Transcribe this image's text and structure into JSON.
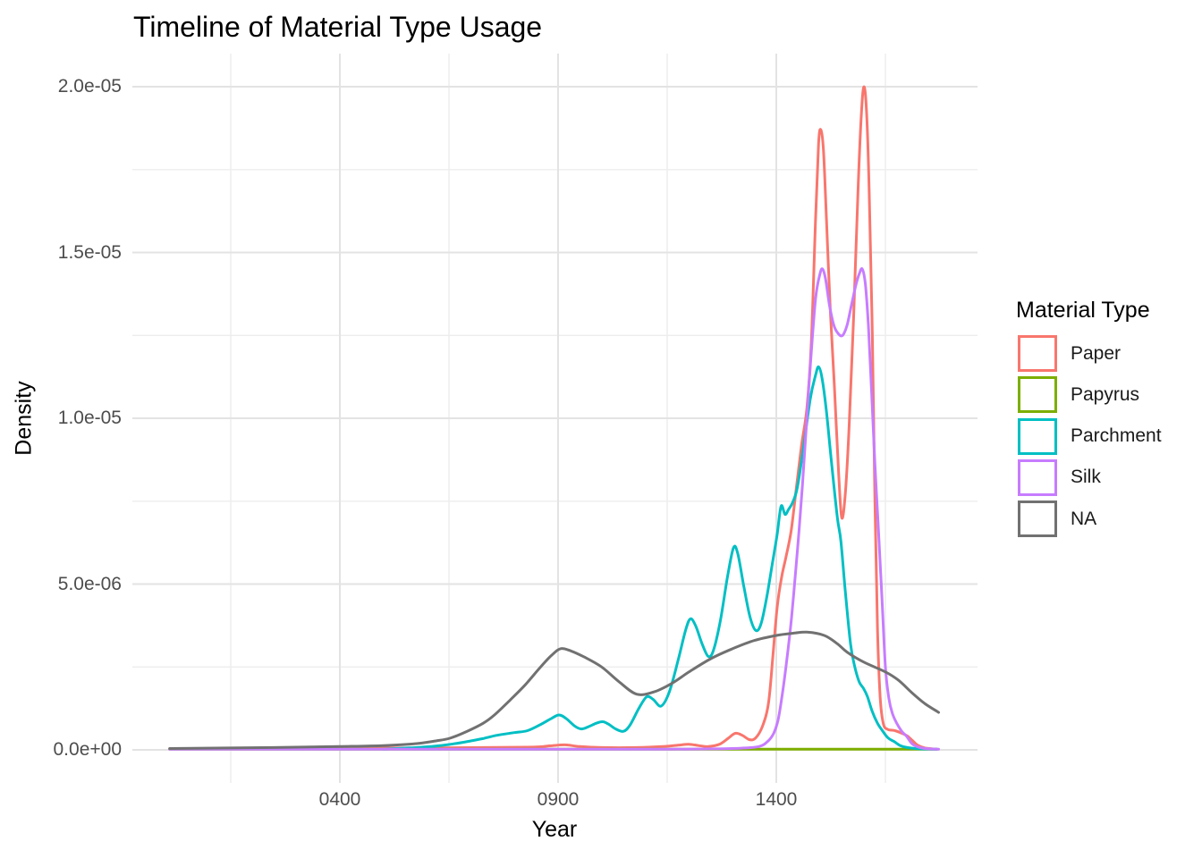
{
  "title": "Timeline of Material Type Usage",
  "axes": {
    "x": {
      "label": "Year",
      "ticks": [
        {
          "label": "0400",
          "value": 400
        },
        {
          "label": "0900",
          "value": 900
        },
        {
          "label": "1400",
          "value": 1400
        }
      ],
      "minor_ticks": [
        150,
        650,
        1150,
        1650
      ],
      "domain": [
        10,
        1772
      ]
    },
    "y": {
      "label": "Density",
      "ticks": [
        {
          "label": "0.0e+00",
          "value_e6": 0
        },
        {
          "label": "5.0e-06",
          "value_e6": 5
        },
        {
          "label": "1.0e-05",
          "value_e6": 10
        },
        {
          "label": "1.5e-05",
          "value_e6": 15
        },
        {
          "label": "2.0e-05",
          "value_e6": 20
        }
      ],
      "minor_ticks_e6": [
        2.5,
        7.5,
        12.5,
        17.5
      ],
      "domain_e6": [
        0,
        22
      ]
    }
  },
  "legend": {
    "title": "Material Type",
    "items": [
      {
        "label": "Paper",
        "color": "#F8766D"
      },
      {
        "label": "Papyrus",
        "color": "#7CAE00"
      },
      {
        "label": "Parchment",
        "color": "#00BFC4"
      },
      {
        "label": "Silk",
        "color": "#C77CFF"
      },
      {
        "label": "NA",
        "color": "#717171"
      }
    ]
  },
  "style": {
    "grid_major_color": "#E3E3E3",
    "grid_minor_color": "#EDEDED",
    "line_width": 3
  },
  "chart_data": {
    "type": "line",
    "subtype": "density",
    "xlabel": "Year",
    "ylabel": "Density",
    "x_range": [
      10,
      1772
    ],
    "y_range": [
      0,
      2e-05
    ],
    "grid": true,
    "legend_position": "right",
    "density_units": "1e-06",
    "series": [
      {
        "name": "Paper",
        "color": "#F8766D",
        "points": [
          [
            10,
            0.03
          ],
          [
            300,
            0.04
          ],
          [
            600,
            0.06
          ],
          [
            830,
            0.08
          ],
          [
            880,
            0.12
          ],
          [
            916,
            0.15
          ],
          [
            950,
            0.1
          ],
          [
            1000,
            0.07
          ],
          [
            1080,
            0.07
          ],
          [
            1140,
            0.1
          ],
          [
            1175,
            0.14
          ],
          [
            1199,
            0.17
          ],
          [
            1222,
            0.13
          ],
          [
            1244,
            0.1
          ],
          [
            1270,
            0.17
          ],
          [
            1290,
            0.35
          ],
          [
            1306,
            0.5
          ],
          [
            1322,
            0.44
          ],
          [
            1338,
            0.31
          ],
          [
            1352,
            0.35
          ],
          [
            1368,
            0.7
          ],
          [
            1382,
            1.4
          ],
          [
            1392,
            2.8
          ],
          [
            1402,
            4.3
          ],
          [
            1412,
            5.2
          ],
          [
            1422,
            5.8
          ],
          [
            1434,
            6.6
          ],
          [
            1446,
            7.9
          ],
          [
            1458,
            9.2
          ],
          [
            1470,
            10.3
          ],
          [
            1480,
            12.2
          ],
          [
            1490,
            16.0
          ],
          [
            1497,
            18.3
          ],
          [
            1502,
            18.7
          ],
          [
            1508,
            18.1
          ],
          [
            1515,
            16.0
          ],
          [
            1524,
            13.2
          ],
          [
            1533,
            11.0
          ],
          [
            1543,
            8.3
          ],
          [
            1550,
            7.0
          ],
          [
            1558,
            7.7
          ],
          [
            1567,
            9.8
          ],
          [
            1577,
            13.0
          ],
          [
            1587,
            16.8
          ],
          [
            1595,
            19.2
          ],
          [
            1601,
            20.0
          ],
          [
            1607,
            19.2
          ],
          [
            1613,
            16.8
          ],
          [
            1620,
            12.5
          ],
          [
            1626,
            7.5
          ],
          [
            1632,
            3.6
          ],
          [
            1638,
            1.6
          ],
          [
            1645,
            0.8
          ],
          [
            1655,
            0.62
          ],
          [
            1672,
            0.58
          ],
          [
            1688,
            0.5
          ],
          [
            1700,
            0.42
          ],
          [
            1712,
            0.28
          ],
          [
            1724,
            0.14
          ],
          [
            1740,
            0.06
          ],
          [
            1768,
            0.02
          ]
        ]
      },
      {
        "name": "Papyrus",
        "color": "#7CAE00",
        "points": [
          [
            10,
            0.02
          ],
          [
            300,
            0.02
          ],
          [
            700,
            0.02
          ],
          [
            1100,
            0.02
          ],
          [
            1400,
            0.02
          ],
          [
            1768,
            0.02
          ]
        ]
      },
      {
        "name": "Parchment",
        "color": "#00BFC4",
        "points": [
          [
            500,
            0.02
          ],
          [
            560,
            0.06
          ],
          [
            610,
            0.1
          ],
          [
            660,
            0.18
          ],
          [
            700,
            0.27
          ],
          [
            728,
            0.34
          ],
          [
            760,
            0.44
          ],
          [
            800,
            0.52
          ],
          [
            830,
            0.58
          ],
          [
            862,
            0.78
          ],
          [
            885,
            0.95
          ],
          [
            902,
            1.05
          ],
          [
            918,
            0.95
          ],
          [
            938,
            0.72
          ],
          [
            953,
            0.63
          ],
          [
            970,
            0.7
          ],
          [
            987,
            0.8
          ],
          [
            1002,
            0.85
          ],
          [
            1015,
            0.78
          ],
          [
            1032,
            0.63
          ],
          [
            1050,
            0.56
          ],
          [
            1065,
            0.75
          ],
          [
            1085,
            1.25
          ],
          [
            1103,
            1.6
          ],
          [
            1118,
            1.52
          ],
          [
            1136,
            1.32
          ],
          [
            1155,
            1.75
          ],
          [
            1175,
            2.7
          ],
          [
            1192,
            3.6
          ],
          [
            1203,
            3.95
          ],
          [
            1215,
            3.75
          ],
          [
            1230,
            3.2
          ],
          [
            1244,
            2.82
          ],
          [
            1256,
            3.0
          ],
          [
            1272,
            3.9
          ],
          [
            1288,
            5.2
          ],
          [
            1302,
            6.1
          ],
          [
            1312,
            5.9
          ],
          [
            1326,
            4.9
          ],
          [
            1340,
            4.0
          ],
          [
            1353,
            3.6
          ],
          [
            1365,
            3.8
          ],
          [
            1378,
            4.6
          ],
          [
            1392,
            5.7
          ],
          [
            1402,
            6.5
          ],
          [
            1411,
            7.35
          ],
          [
            1420,
            7.1
          ],
          [
            1428,
            7.25
          ],
          [
            1437,
            7.45
          ],
          [
            1448,
            7.9
          ],
          [
            1462,
            9.1
          ],
          [
            1478,
            10.6
          ],
          [
            1490,
            11.3
          ],
          [
            1497,
            11.55
          ],
          [
            1505,
            11.2
          ],
          [
            1515,
            10.2
          ],
          [
            1527,
            8.6
          ],
          [
            1540,
            7.0
          ],
          [
            1548,
            6.3
          ],
          [
            1558,
            4.8
          ],
          [
            1570,
            3.2
          ],
          [
            1580,
            2.5
          ],
          [
            1590,
            2.05
          ],
          [
            1600,
            1.85
          ],
          [
            1609,
            1.6
          ],
          [
            1620,
            1.15
          ],
          [
            1632,
            0.8
          ],
          [
            1642,
            0.6
          ],
          [
            1656,
            0.36
          ],
          [
            1670,
            0.25
          ],
          [
            1684,
            0.13
          ],
          [
            1700,
            0.07
          ],
          [
            1730,
            0.03
          ],
          [
            1768,
            0.02
          ]
        ]
      },
      {
        "name": "Silk",
        "color": "#C77CFF",
        "points": [
          [
            10,
            0.02
          ],
          [
            500,
            0.02
          ],
          [
            900,
            0.02
          ],
          [
            1150,
            0.02
          ],
          [
            1250,
            0.03
          ],
          [
            1320,
            0.05
          ],
          [
            1360,
            0.1
          ],
          [
            1380,
            0.25
          ],
          [
            1394,
            0.5
          ],
          [
            1404,
            0.9
          ],
          [
            1413,
            1.6
          ],
          [
            1424,
            2.7
          ],
          [
            1435,
            4.0
          ],
          [
            1445,
            5.5
          ],
          [
            1452,
            6.6
          ],
          [
            1460,
            8.0
          ],
          [
            1468,
            9.6
          ],
          [
            1478,
            11.6
          ],
          [
            1490,
            13.6
          ],
          [
            1500,
            14.35
          ],
          [
            1506,
            14.5
          ],
          [
            1513,
            14.2
          ],
          [
            1522,
            13.4
          ],
          [
            1532,
            12.8
          ],
          [
            1542,
            12.55
          ],
          [
            1552,
            12.5
          ],
          [
            1562,
            12.8
          ],
          [
            1572,
            13.4
          ],
          [
            1582,
            14.0
          ],
          [
            1590,
            14.35
          ],
          [
            1597,
            14.5
          ],
          [
            1604,
            14.05
          ],
          [
            1611,
            12.8
          ],
          [
            1618,
            10.9
          ],
          [
            1626,
            8.6
          ],
          [
            1633,
            6.9
          ],
          [
            1642,
            4.6
          ],
          [
            1650,
            2.5
          ],
          [
            1658,
            1.55
          ],
          [
            1666,
            1.1
          ],
          [
            1676,
            0.8
          ],
          [
            1688,
            0.55
          ],
          [
            1698,
            0.42
          ],
          [
            1710,
            0.2
          ],
          [
            1722,
            0.1
          ],
          [
            1740,
            0.04
          ],
          [
            1772,
            0.02
          ]
        ]
      },
      {
        "name": "NA",
        "color": "#717171",
        "points": [
          [
            10,
            0.04
          ],
          [
            250,
            0.07
          ],
          [
            400,
            0.1
          ],
          [
            500,
            0.13
          ],
          [
            570,
            0.18
          ],
          [
            620,
            0.27
          ],
          [
            652,
            0.35
          ],
          [
            690,
            0.55
          ],
          [
            728,
            0.8
          ],
          [
            754,
            1.05
          ],
          [
            790,
            1.5
          ],
          [
            824,
            1.95
          ],
          [
            860,
            2.5
          ],
          [
            885,
            2.85
          ],
          [
            906,
            3.05
          ],
          [
            930,
            2.98
          ],
          [
            960,
            2.8
          ],
          [
            1000,
            2.5
          ],
          [
            1040,
            2.05
          ],
          [
            1080,
            1.68
          ],
          [
            1120,
            1.75
          ],
          [
            1160,
            2.0
          ],
          [
            1200,
            2.35
          ],
          [
            1250,
            2.75
          ],
          [
            1300,
            3.05
          ],
          [
            1350,
            3.3
          ],
          [
            1400,
            3.45
          ],
          [
            1440,
            3.52
          ],
          [
            1470,
            3.55
          ],
          [
            1510,
            3.45
          ],
          [
            1540,
            3.2
          ],
          [
            1562,
            2.95
          ],
          [
            1600,
            2.65
          ],
          [
            1650,
            2.35
          ],
          [
            1680,
            2.1
          ],
          [
            1711,
            1.72
          ],
          [
            1740,
            1.4
          ],
          [
            1772,
            1.13
          ]
        ]
      }
    ]
  }
}
